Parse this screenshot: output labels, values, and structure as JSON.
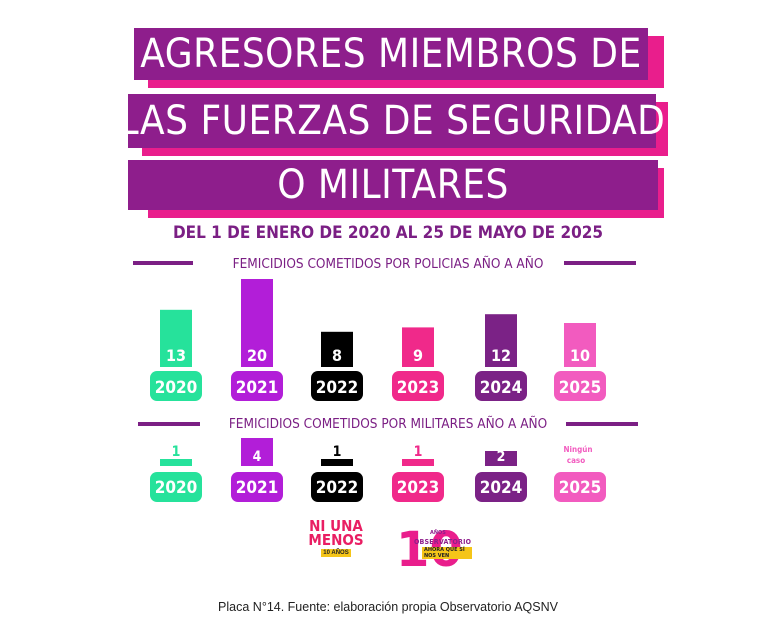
{
  "header": {
    "title_lines": [
      "AGRESORES MIEMBROS DE",
      "LAS FUERZAS DE SEGURIDAD",
      "O MILITARES"
    ],
    "subtitle": "DEL 1 DE ENERO DE 2020 AL 25 DE MAYO DE 2025"
  },
  "colors": {
    "purple": "#8e1e8c",
    "pink": "#e91e8c",
    "year_colors": [
      "#26e29b",
      "#b21ed8",
      "#000000",
      "#f0298a",
      "#7b2286",
      "#f25bbf"
    ]
  },
  "chart_data": [
    {
      "type": "bar",
      "title": "FEMICIDIOS COMETIDOS POR POLICIAS AÑO A AÑO",
      "categories": [
        "2020",
        "2021",
        "2022",
        "2023",
        "2024",
        "2025"
      ],
      "values": [
        13,
        20,
        8,
        9,
        12,
        10
      ],
      "value_labels": [
        "13",
        "20",
        "8",
        "9",
        "12",
        "10"
      ],
      "ylim": [
        0,
        20
      ]
    },
    {
      "type": "bar",
      "title": "FEMICIDIOS COMETIDOS POR MILITARES AÑO A AÑO",
      "categories": [
        "2020",
        "2021",
        "2022",
        "2023",
        "2024",
        "2025"
      ],
      "values": [
        1,
        4,
        1,
        1,
        2,
        0
      ],
      "value_labels": [
        "1",
        "4",
        "1",
        "1",
        "2",
        ""
      ],
      "note_2025": [
        "Ningún",
        "caso"
      ],
      "ylim": [
        0,
        4
      ]
    }
  ],
  "logos": {
    "niunamenos": {
      "line1": "NI UNA",
      "line2": "MENOS",
      "tag": "10 AÑOS"
    },
    "observatorio": {
      "number": "10",
      "anios": "AÑOS",
      "name": "OBSERVATORIO",
      "tag": "AHORA QUE SÍ NOS VEN"
    }
  },
  "caption": "Placa N°14. Fuente: elaboración propia Observatorio AQSNV"
}
